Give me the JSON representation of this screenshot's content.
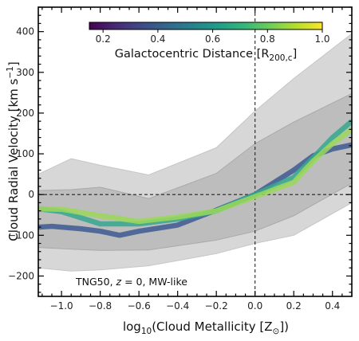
{
  "chart_data": {
    "type": "line",
    "xlabel": "log10(Cloud Metallicity [Z☉])",
    "xlabel_parts": {
      "pre": "log",
      "sub": "10",
      "mid": "(Cloud Metallicity [Z",
      "sub2": "⊙",
      "post": "])"
    },
    "ylabel": "Cloud Radial Velocity [km s⁻¹]",
    "ylabel_parts": {
      "pre": "Cloud Radial Velocity [km s",
      "sup": "−1",
      "post": "]"
    },
    "xlim": [
      -1.12,
      0.5
    ],
    "ylim": [
      -250,
      460
    ],
    "xticks": [
      -1.0,
      -0.8,
      -0.6,
      -0.4,
      -0.2,
      0.0,
      0.2,
      0.4
    ],
    "xtick_labels": [
      "−1.0",
      "−0.8",
      "−0.6",
      "−0.4",
      "−0.2",
      "0.0",
      "0.2",
      "0.4"
    ],
    "yticks": [
      -200,
      -100,
      0,
      100,
      200,
      300,
      400
    ],
    "ytick_labels": [
      "−200",
      "−100",
      "0",
      "100",
      "200",
      "300",
      "400"
    ],
    "reference_lines": {
      "x": 0,
      "y": 0,
      "style": "dashed"
    },
    "bands": [
      {
        "shade": "outer",
        "x": [
          -1.12,
          -0.95,
          -0.8,
          -0.55,
          -0.2,
          0.0,
          0.2,
          0.5
        ],
        "upper": [
          50,
          88,
          72,
          48,
          115,
          205,
          285,
          395
        ],
        "lower": [
          -180,
          -188,
          -185,
          -175,
          -145,
          -120,
          -100,
          -20
        ]
      },
      {
        "shade": "inner",
        "x": [
          -1.12,
          -0.95,
          -0.8,
          -0.55,
          -0.2,
          0.0,
          0.2,
          0.5
        ],
        "upper": [
          10,
          12,
          18,
          -10,
          52,
          125,
          178,
          248
        ],
        "lower": [
          -130,
          -134,
          -137,
          -136,
          -112,
          -90,
          -52,
          28
        ]
      }
    ],
    "series": [
      {
        "x": [
          -1.12,
          -1.05,
          -0.9,
          -0.8,
          -0.7,
          -0.6,
          -0.4,
          -0.2,
          0.0,
          0.2,
          0.3,
          0.4,
          0.5
        ],
        "y": [
          -80,
          -78,
          -84,
          -90,
          -100,
          -90,
          -75,
          -38,
          0,
          60,
          95,
          112,
          122
        ],
        "color": "#3e5a92"
      },
      {
        "x": [
          -1.12,
          -1.0,
          -0.8,
          -0.6,
          -0.4,
          -0.2,
          0.0,
          0.2,
          0.3,
          0.4,
          0.5
        ],
        "y": [
          -35,
          -42,
          -72,
          -72,
          -60,
          -40,
          0,
          42,
          90,
          140,
          180
        ],
        "color": "#35a88f"
      },
      {
        "x": [
          -1.12,
          -1.0,
          -0.8,
          -0.6,
          -0.4,
          -0.2,
          0.0,
          0.2,
          0.3,
          0.4,
          0.5
        ],
        "y": [
          -35,
          -36,
          -52,
          -66,
          -55,
          -40,
          -5,
          30,
          82,
          125,
          160
        ],
        "color": "#9bd85a"
      }
    ],
    "colorbar": {
      "colormap": "viridis",
      "range": [
        0.15,
        1.0
      ],
      "ticks": [
        0.2,
        0.4,
        0.6,
        0.8,
        1.0
      ],
      "tick_labels": [
        "0.2",
        "0.4",
        "0.6",
        "0.8",
        "1.0"
      ],
      "label": "Galactocentric Distance [R200,c]",
      "label_parts": {
        "pre": "Galactocentric Distance [R",
        "sub": "200,c",
        "post": "]"
      },
      "stops": [
        "#440154",
        "#482878",
        "#3e4989",
        "#31688e",
        "#26828e",
        "#1f9e89",
        "#35b779",
        "#6ece58",
        "#b5de2b",
        "#fde725"
      ],
      "placement": "top"
    },
    "annotation": {
      "pre": "TNG50, ",
      "var": "z",
      "post": " = 0, MW-like",
      "placement": "bottom-left"
    },
    "grid": false
  }
}
